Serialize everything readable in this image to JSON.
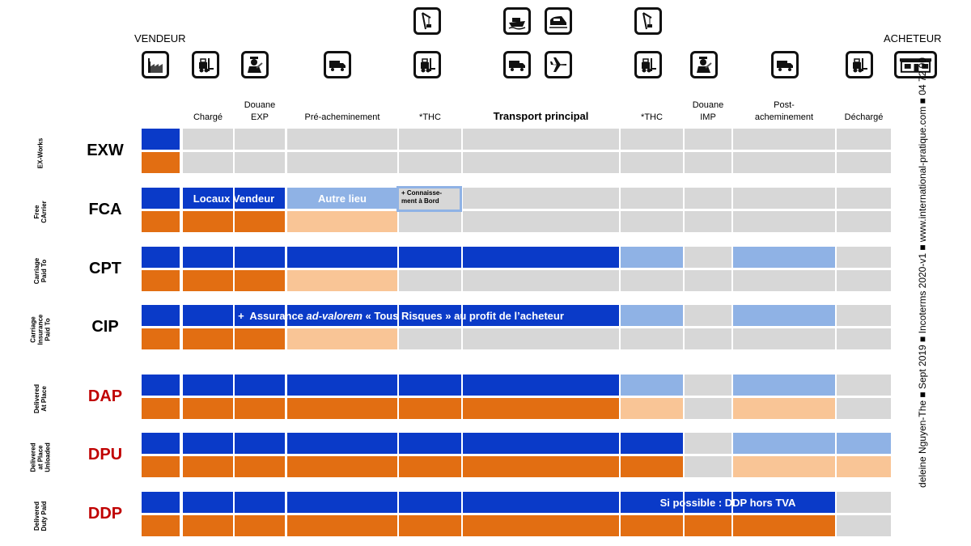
{
  "header": {
    "seller": "VENDEUR",
    "buyer": "ACHETEUR"
  },
  "columns": [
    {
      "id": "seller",
      "label": ""
    },
    {
      "id": "charge",
      "label": "Chargé"
    },
    {
      "id": "douane_exp",
      "label": "Douane\nEXP"
    },
    {
      "id": "pre",
      "label": "Pré-acheminement"
    },
    {
      "id": "thc1",
      "label": "*THC"
    },
    {
      "id": "main",
      "label": "Transport principal"
    },
    {
      "id": "thc2",
      "label": "*THC"
    },
    {
      "id": "douane_imp",
      "label": "Douane\nIMP"
    },
    {
      "id": "post",
      "label": "Post-\nacheminement"
    },
    {
      "id": "decharge",
      "label": "Déchargé"
    }
  ],
  "icons": {
    "seller": "factory-icon",
    "charge": "forklift-icon",
    "douane_exp": "customs-officer-icon",
    "pre": "truck-icon",
    "thc1_top": "port-crane-icon",
    "thc1_bottom": "forklift-icon",
    "main_ship": "ship-icon",
    "main_train": "train-icon",
    "main_truck": "truck-icon",
    "main_plane": "plane-icon",
    "thc2_top": "port-crane-icon",
    "thc2_bottom": "forklift-icon",
    "douane_imp": "customs-officer-icon",
    "post": "truck-icon",
    "decharge": "forklift-icon",
    "buyer": "shop-icon"
  },
  "colors": {
    "seller_cost": "#0a3ac8",
    "buyer_cost_partial": "#8fb2e5",
    "seller_risk": "#e26e12",
    "buyer_risk_partial": "#f9c596",
    "not_applicable": "#d7d7d7",
    "code_black": "#000000",
    "code_red": "#c00000"
  },
  "rows": [
    {
      "code": "EXW",
      "name": "EX-Works",
      "code_color": "#000000",
      "cost": [
        "db",
        "gr",
        "gr",
        "gr",
        "gr",
        "gr",
        "gr",
        "gr",
        "gr",
        "gr"
      ],
      "risk": [
        "or",
        "gr",
        "gr",
        "gr",
        "gr",
        "gr",
        "gr",
        "gr",
        "gr",
        "gr"
      ]
    },
    {
      "code": "FCA",
      "name": "Free\nCArrier",
      "code_color": "#000000",
      "cost": [
        "db",
        "db",
        "db",
        "lb",
        "gr",
        "gr",
        "gr",
        "gr",
        "gr",
        "gr"
      ],
      "risk": [
        "or",
        "or",
        "or",
        "pe",
        "gr",
        "gr",
        "gr",
        "gr",
        "gr",
        "gr"
      ]
    },
    {
      "code": "CPT",
      "name": "Carriage\nPaid To",
      "code_color": "#000000",
      "cost": [
        "db",
        "db",
        "db",
        "db",
        "db",
        "db",
        "lb",
        "gr",
        "lb",
        "gr"
      ],
      "risk": [
        "or",
        "or",
        "or",
        "pe",
        "gr",
        "gr",
        "gr",
        "gr",
        "gr",
        "gr"
      ]
    },
    {
      "code": "CIP",
      "name": "Carriage\nInsurance\nPaid To",
      "code_color": "#000000",
      "cost": [
        "db",
        "db",
        "db",
        "db",
        "db",
        "db",
        "lb",
        "gr",
        "lb",
        "gr"
      ],
      "risk": [
        "or",
        "or",
        "or",
        "pe",
        "gr",
        "gr",
        "gr",
        "gr",
        "gr",
        "gr"
      ]
    },
    {
      "code": "DAP",
      "name": "Delivered\nAt Place",
      "code_color": "#c00000",
      "cost": [
        "db",
        "db",
        "db",
        "db",
        "db",
        "db",
        "lb",
        "gr",
        "lb",
        "gr"
      ],
      "risk": [
        "or",
        "or",
        "or",
        "or",
        "or",
        "or",
        "pe",
        "gr",
        "pe",
        "gr"
      ]
    },
    {
      "code": "DPU",
      "name": "Delivered\nat Place\nUnloaded",
      "code_color": "#c00000",
      "cost": [
        "db",
        "db",
        "db",
        "db",
        "db",
        "db",
        "db",
        "gr",
        "lb",
        "lb"
      ],
      "risk": [
        "or",
        "or",
        "or",
        "or",
        "or",
        "or",
        "or",
        "gr",
        "pe",
        "pe"
      ]
    },
    {
      "code": "DDP",
      "name": "Delivered\nDuty Paid",
      "code_color": "#c00000",
      "cost": [
        "db",
        "db",
        "db",
        "db",
        "db",
        "db",
        "db",
        "db",
        "db",
        "gr"
      ],
      "risk": [
        "or",
        "or",
        "or",
        "or",
        "or",
        "or",
        "or",
        "or",
        "or",
        "gr"
      ]
    }
  ],
  "annotations": {
    "fca_locaux": "Locaux Vendeur",
    "fca_autre": "Autre lieu",
    "fca_note": "+ Connaisse-\nment à Bord",
    "cip_insurance_pre": "+  Assurance ",
    "cip_insurance_em": "ad-valorem",
    "cip_insurance_post": " « Tous Risques » au profit de l’acheteur",
    "ddp_note": "Si possible : DDP hors TVA"
  },
  "side_text": "deleine Nguyen-The ■ Sept 2019 ■ Incoterms 2020-v1 ■ www.international-pratique.com ■ 04 72 90"
}
